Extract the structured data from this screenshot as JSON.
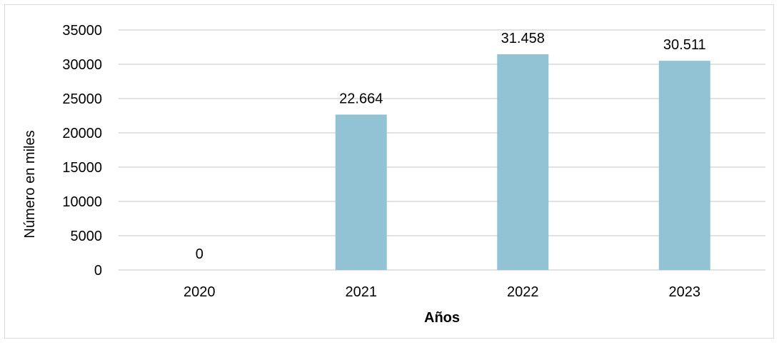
{
  "chart_data": {
    "type": "bar",
    "title": "",
    "xlabel": "Años",
    "ylabel": "Número en miles",
    "categories": [
      "2020",
      "2021",
      "2022",
      "2023"
    ],
    "values": [
      0,
      22664,
      31458,
      30511
    ],
    "data_labels": [
      "0",
      "22.664",
      "31.458",
      "30.511"
    ],
    "yticks": [
      0,
      5000,
      10000,
      15000,
      20000,
      25000,
      30000,
      35000
    ],
    "ylim": [
      0,
      35000
    ],
    "grid": true,
    "legend": "none",
    "bar_color": "#92c3d5",
    "grid_color": "#d9d9d9"
  }
}
